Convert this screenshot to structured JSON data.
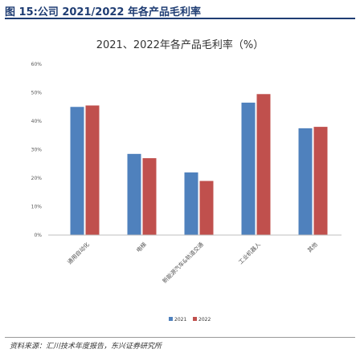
{
  "figure_title": "图 15:公司 2021/2022 年各产品毛利率",
  "source_note": "资料来源：汇川技术年度报告，东兴证券研究所",
  "colors": {
    "s2021": "#4f81bd",
    "s2022": "#c0504d",
    "axis": "#bfbfbf",
    "tick": "#555555",
    "brand": "#1f3d73"
  },
  "chart_data": {
    "type": "bar",
    "title": "2021、2022年各产品毛利率（%）",
    "categories": [
      "通用自动化",
      "电梯",
      "新能源汽车&轨道交通",
      "工业机器人",
      "其他"
    ],
    "series": [
      {
        "name": "2021",
        "values": [
          45,
          28.5,
          22,
          46.5,
          37.5
        ]
      },
      {
        "name": "2022",
        "values": [
          45.5,
          27,
          19,
          49.5,
          38
        ]
      }
    ],
    "ylim": [
      0,
      60
    ],
    "yticks": [
      "0%",
      "10%",
      "20%",
      "30%",
      "40%",
      "50%",
      "60%"
    ],
    "xlabel": "",
    "ylabel": "",
    "grid": false,
    "legend": "bottom"
  }
}
